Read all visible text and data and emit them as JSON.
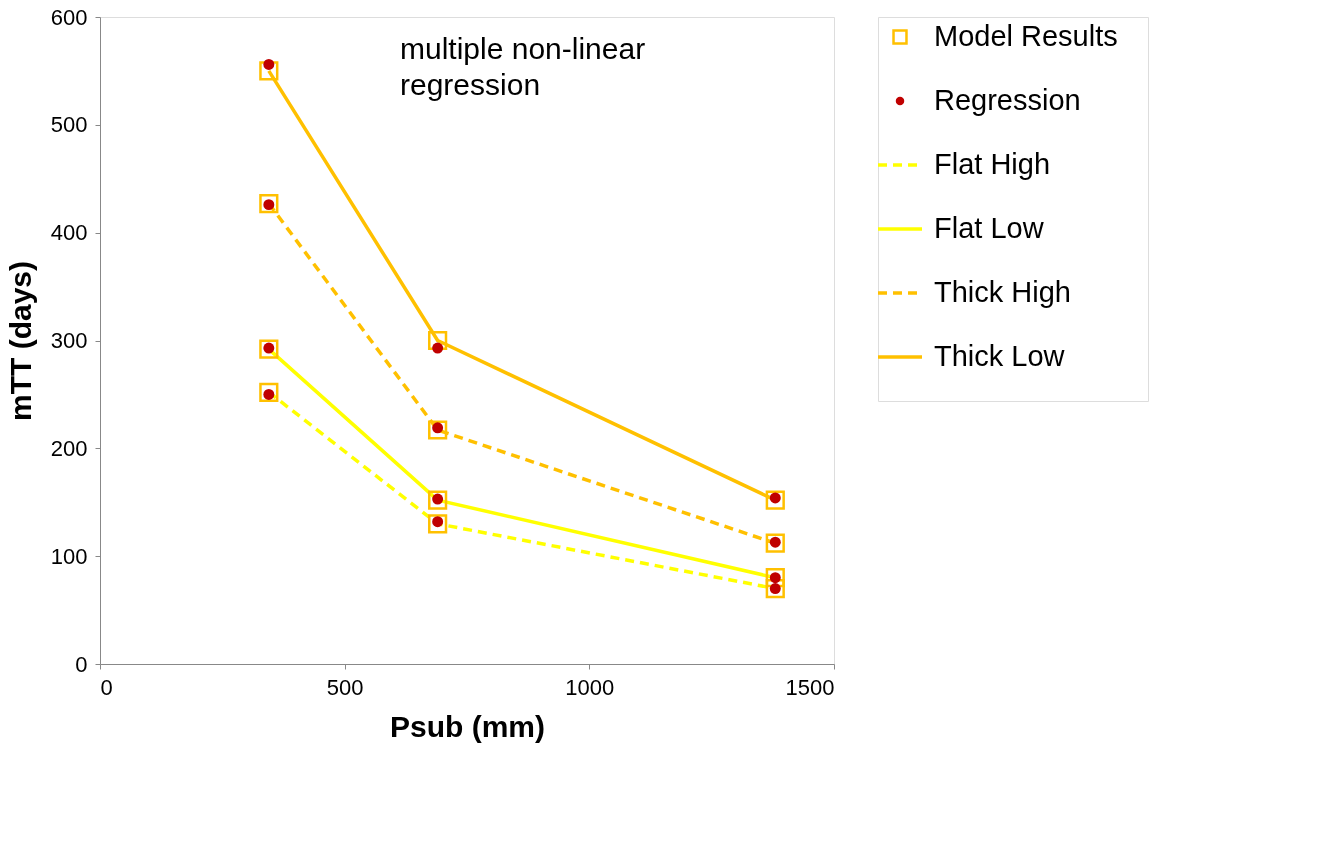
{
  "chart_data": {
    "type": "line",
    "xlabel": "Psub (mm)",
    "ylabel": "mTT (days)",
    "xlim": [
      0,
      1500
    ],
    "xticks": [
      0,
      500,
      1000,
      1500
    ],
    "ylim": [
      0,
      600
    ],
    "yticks": [
      0,
      100,
      200,
      300,
      400,
      500,
      600
    ],
    "grid": false,
    "legend": "right",
    "annotations": [
      "multiple non-linear regression"
    ],
    "series": [
      {
        "name": "Model Results",
        "type": "scatter",
        "marker": "square",
        "color": "#ffc000",
        "x": [
          345,
          690,
          1380,
          345,
          690,
          1380,
          345,
          690,
          1380,
          345,
          690,
          1380
        ],
        "values": [
          252,
          130,
          70,
          292,
          152,
          80,
          427,
          217,
          112,
          550,
          300,
          152
        ]
      },
      {
        "name": "Regression",
        "type": "scatter",
        "marker": "circle",
        "color": "#c00000",
        "x": [
          345,
          690,
          1380,
          345,
          690,
          1380,
          345,
          690,
          1380,
          345,
          690,
          1380
        ],
        "values": [
          250,
          132,
          70,
          293,
          153,
          80,
          426,
          219,
          113,
          556,
          293,
          154
        ]
      },
      {
        "name": "Flat High",
        "line_style": "dashed",
        "color": "#ffff00",
        "x": [
          345,
          690,
          1380
        ],
        "values": [
          252,
          130,
          70
        ]
      },
      {
        "name": "Flat Low",
        "line_style": "solid",
        "color": "#ffff00",
        "x": [
          345,
          690,
          1380
        ],
        "values": [
          292,
          152,
          80
        ]
      },
      {
        "name": "Thick High",
        "line_style": "dashed",
        "color": "#ffc000",
        "x": [
          345,
          690,
          1380
        ],
        "values": [
          427,
          217,
          112
        ]
      },
      {
        "name": "Thick Low",
        "line_style": "solid",
        "color": "#ffc000",
        "x": [
          345,
          690,
          1380
        ],
        "values": [
          550,
          300,
          152
        ]
      }
    ]
  }
}
